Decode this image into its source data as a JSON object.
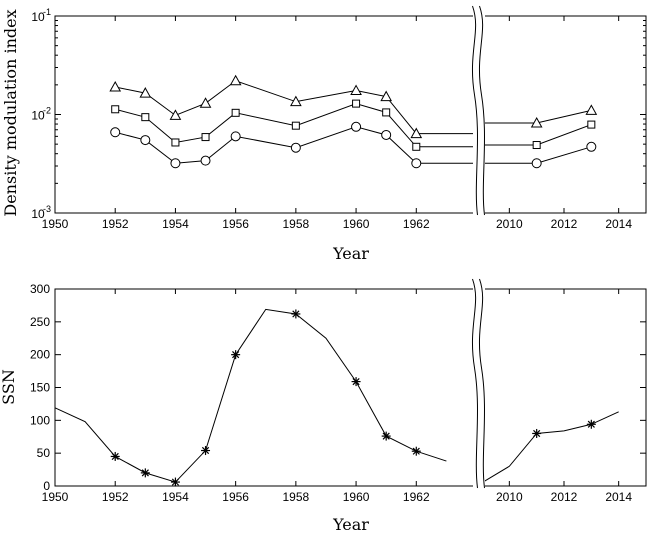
{
  "chart_data": [
    {
      "type": "line",
      "title": "",
      "xlabel": "Year",
      "ylabel": "Density modulation index",
      "yscale": "log",
      "ylim": [
        0.001,
        0.1
      ],
      "yticks": [
        {
          "base": "10",
          "exp": "-3",
          "value": 0.001
        },
        {
          "base": "10",
          "exp": "-2",
          "value": 0.01
        },
        {
          "base": "10",
          "exp": "-1",
          "value": 0.1
        }
      ],
      "x_axis_segments": [
        {
          "range": [
            1950,
            1964
          ],
          "ticks": [
            "1950",
            "1952",
            "1954",
            "1956",
            "1958",
            "1960",
            "1962"
          ]
        },
        {
          "range": [
            2009,
            2015
          ],
          "ticks": [
            "2010",
            "2012",
            "2014"
          ]
        }
      ],
      "axis_break": "between 1962 and 2010",
      "series": [
        {
          "marker": "triangle",
          "x": [
            1952,
            1953,
            1954,
            1955,
            1956,
            1958,
            1960,
            1961,
            1962,
            2011,
            2013
          ],
          "y": [
            0.019,
            0.0165,
            0.0098,
            0.013,
            0.022,
            0.0135,
            0.0175,
            0.0152,
            0.0064,
            0.0082,
            0.011
          ]
        },
        {
          "marker": "square",
          "x": [
            1952,
            1953,
            1954,
            1955,
            1956,
            1958,
            1960,
            1961,
            1962,
            2011,
            2013
          ],
          "y": [
            0.0113,
            0.0094,
            0.0052,
            0.0059,
            0.0104,
            0.0077,
            0.0129,
            0.0105,
            0.0047,
            0.0049,
            0.0079
          ]
        },
        {
          "marker": "circle",
          "x": [
            1952,
            1953,
            1954,
            1955,
            1956,
            1958,
            1960,
            1961,
            1962,
            2011,
            2013
          ],
          "y": [
            0.0066,
            0.0055,
            0.0032,
            0.0034,
            0.006,
            0.0046,
            0.0075,
            0.0062,
            0.0032,
            0.0032,
            0.0047
          ]
        }
      ]
    },
    {
      "type": "line",
      "title": "",
      "xlabel": "Year",
      "ylabel": "SSN",
      "ylim": [
        0,
        300
      ],
      "yticks": [
        "0",
        "50",
        "100",
        "150",
        "200",
        "250",
        "300"
      ],
      "x_axis_segments": [
        {
          "range": [
            1950,
            1964
          ],
          "ticks": [
            "1950",
            "1952",
            "1954",
            "1956",
            "1958",
            "1960",
            "1962"
          ]
        },
        {
          "range": [
            2009,
            2015
          ],
          "ticks": [
            "2010",
            "2012",
            "2014"
          ]
        }
      ],
      "axis_break": "between 1962 and 2010",
      "series": [
        {
          "x": [
            1950,
            1951,
            1952,
            1953,
            1954,
            1955,
            1956,
            1957,
            1958,
            1959,
            1960,
            1961,
            1962,
            1963,
            2009,
            2010,
            2011,
            2012,
            2013,
            2014
          ],
          "y": [
            119,
            98,
            45,
            20,
            6,
            54,
            200,
            269,
            262,
            225,
            159,
            76,
            53,
            38,
            5,
            30,
            80,
            84,
            94,
            113
          ],
          "starred_x": [
            1952,
            1953,
            1954,
            1955,
            1956,
            1958,
            1960,
            1961,
            1962,
            2011,
            2013
          ],
          "starred_y": [
            45,
            20,
            6,
            54,
            200,
            262,
            159,
            76,
            53,
            80,
            94
          ]
        }
      ]
    }
  ]
}
